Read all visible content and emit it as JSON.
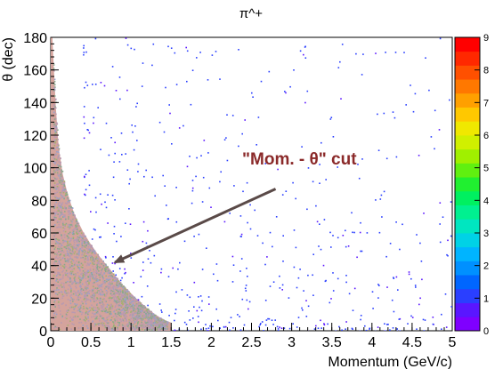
{
  "chart_data": {
    "type": "heatmap",
    "title": "π^+",
    "xlabel": "Momentum (GeV/c)",
    "ylabel": "θ (dec)",
    "xlim": [
      0,
      5
    ],
    "ylim": [
      0,
      180
    ],
    "x_ticks": [
      "0",
      "0.5",
      "1",
      "1.5",
      "2",
      "2.5",
      "3",
      "3.5",
      "4",
      "4.5",
      "5"
    ],
    "y_ticks": [
      "0",
      "20",
      "40",
      "60",
      "80",
      "100",
      "120",
      "140",
      "160",
      "180"
    ],
    "colorbar": {
      "range": [
        0,
        9
      ],
      "ticks": [
        "0",
        "1",
        "2",
        "3",
        "4",
        "5",
        "6",
        "7",
        "8",
        "9"
      ],
      "palette": [
        "#7f00ff",
        "#5a16ff",
        "#2a3fff",
        "#0066ff",
        "#0090ff",
        "#00b4ff",
        "#00d2e6",
        "#00e6c0",
        "#00f090",
        "#00f060",
        "#20f030",
        "#60f010",
        "#a0f000",
        "#d0f000",
        "#f0e800",
        "#ffc800",
        "#ffa000",
        "#ff7800",
        "#ff5000",
        "#ff2800",
        "#ff0000"
      ]
    },
    "cut_region": {
      "color": "#d4a39c",
      "boundary": [
        [
          0.02,
          180
        ],
        [
          0.04,
          160
        ],
        [
          0.06,
          140
        ],
        [
          0.08,
          125
        ],
        [
          0.1,
          112
        ],
        [
          0.15,
          96
        ],
        [
          0.2,
          86
        ],
        [
          0.25,
          78
        ],
        [
          0.3,
          71
        ],
        [
          0.4,
          61
        ],
        [
          0.5,
          53
        ],
        [
          0.6,
          46
        ],
        [
          0.7,
          40
        ],
        [
          0.8,
          34
        ],
        [
          0.9,
          28
        ],
        [
          1.0,
          23
        ],
        [
          1.1,
          18
        ],
        [
          1.2,
          14
        ],
        [
          1.3,
          10
        ],
        [
          1.4,
          7
        ],
        [
          1.5,
          5
        ]
      ]
    },
    "annotation": {
      "text": "\"Mom. - θ\" cut",
      "arrow_from": [
        2.8,
        87
      ],
      "arrow_to": [
        0.8,
        42
      ],
      "color": "#8b2a2a"
    }
  }
}
